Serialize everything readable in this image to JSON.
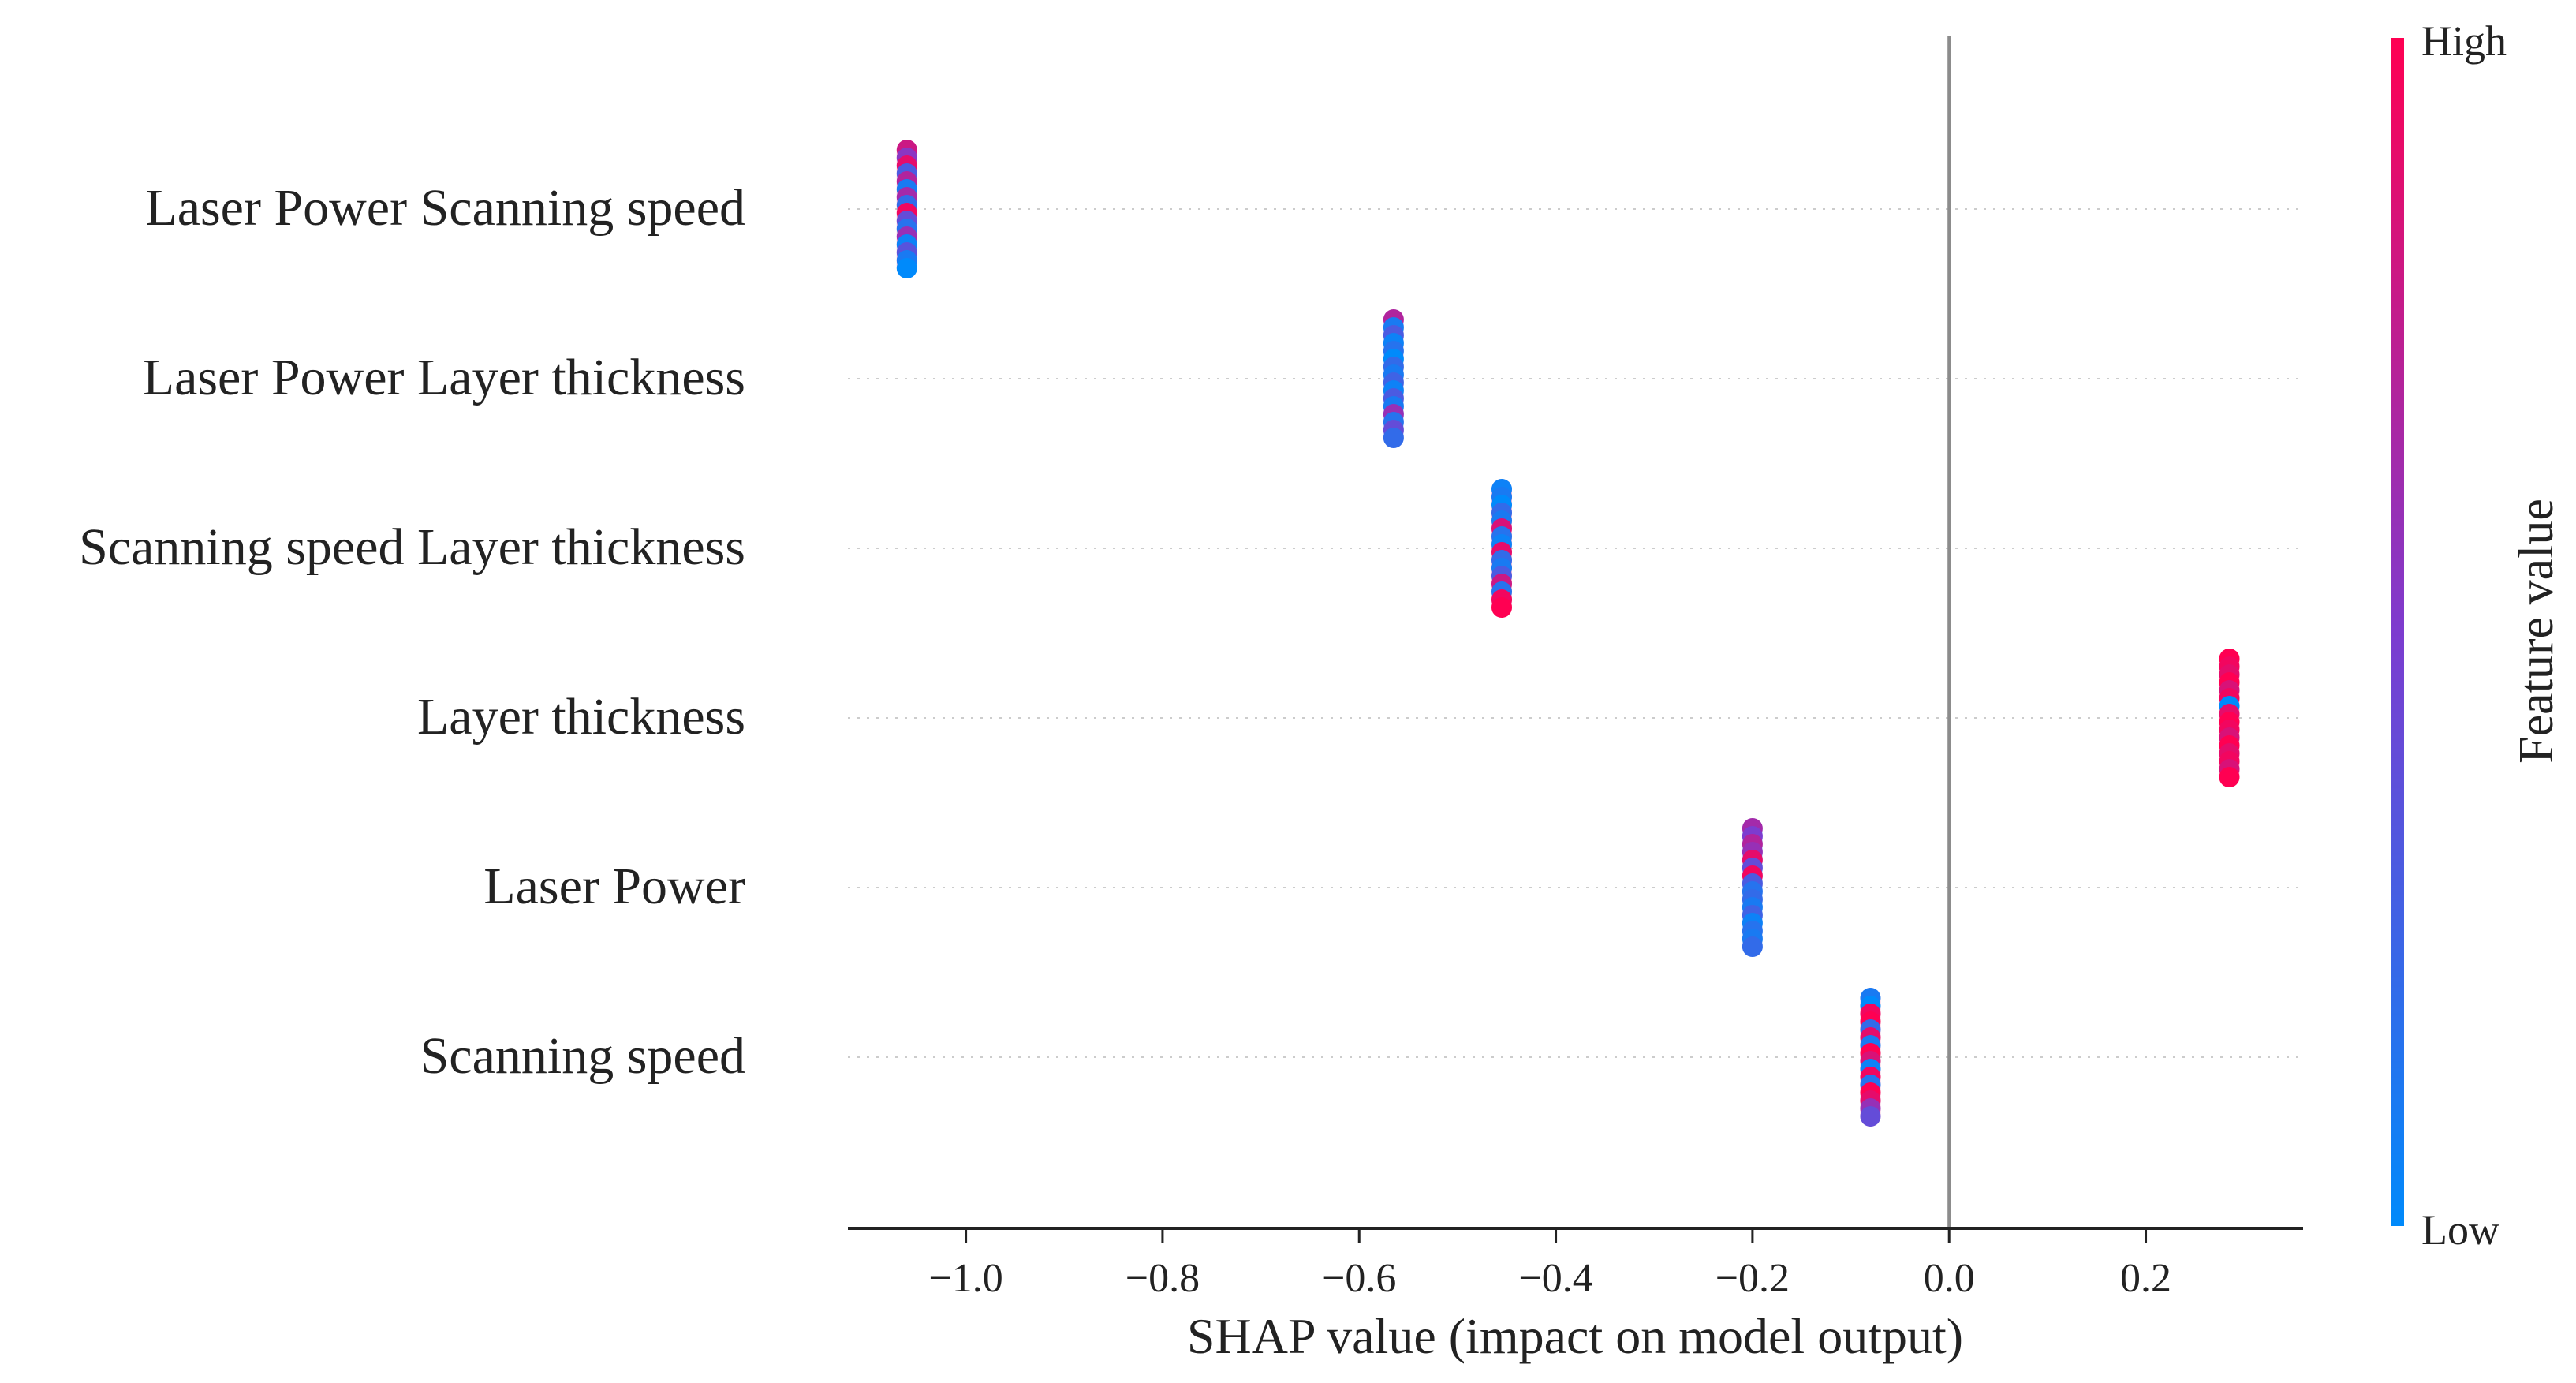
{
  "chart_data": {
    "type": "scatter",
    "subtype": "shap-beeswarm",
    "xlabel": "SHAP value (impact on model output)",
    "xlim": [
      -1.12,
      0.36
    ],
    "xticks": [
      -1.0,
      -0.8,
      -0.6,
      -0.4,
      -0.2,
      0.0,
      0.2
    ],
    "xtick_labels": [
      "−1.0",
      "−0.8",
      "−0.6",
      "−0.4",
      "−0.2",
      "0.0",
      "0.2"
    ],
    "zero_line": 0.0,
    "grid": "horizontal-dotted",
    "features": [
      {
        "name": "Laser Power Scanning speed",
        "shap_value": -1.06,
        "feature_values": [
          0.8,
          0.55,
          0.9,
          0.3,
          0.7,
          0.1,
          0.65,
          0.2,
          0.95,
          0.4,
          0.15,
          0.6,
          0.05,
          0.35,
          0.1,
          0.0
        ]
      },
      {
        "name": "Laser Power Layer thickness",
        "shap_value": -0.565,
        "feature_values": [
          0.7,
          0.1,
          0.3,
          0.05,
          0.15,
          0.0,
          0.2,
          0.1,
          0.25,
          0.05,
          0.3,
          0.1,
          0.6,
          0.15,
          0.4,
          0.2
        ]
      },
      {
        "name": "Scanning speed Layer thickness",
        "shap_value": -0.455,
        "feature_values": [
          0.05,
          0.1,
          0.0,
          0.2,
          0.1,
          0.85,
          0.15,
          0.05,
          0.9,
          0.2,
          0.1,
          0.3,
          0.8,
          0.15,
          0.95,
          1.0
        ]
      },
      {
        "name": "Layer thickness",
        "shap_value": 0.285,
        "feature_values": [
          1.0,
          0.95,
          0.9,
          1.0,
          0.85,
          0.95,
          0.0,
          0.9,
          1.0,
          0.95,
          0.85,
          1.0,
          0.9,
          0.95,
          0.85,
          1.0
        ]
      },
      {
        "name": "Laser Power",
        "shap_value": -0.2,
        "feature_values": [
          0.65,
          0.5,
          0.7,
          0.6,
          0.9,
          0.4,
          0.95,
          0.3,
          0.15,
          0.2,
          0.1,
          0.25,
          0.05,
          0.15,
          0.1,
          0.2
        ]
      },
      {
        "name": "Scanning speed",
        "shap_value": -0.08,
        "feature_values": [
          0.1,
          0.0,
          0.95,
          1.0,
          0.2,
          0.9,
          0.1,
          1.0,
          0.85,
          0.05,
          0.95,
          0.15,
          1.0,
          0.9,
          0.6,
          0.4
        ]
      }
    ],
    "colorbar": {
      "label": "Feature value",
      "high_label": "High",
      "low_label": "Low",
      "colors": [
        "#008afb",
        "#7d3ccf",
        "#ff0052"
      ]
    }
  }
}
